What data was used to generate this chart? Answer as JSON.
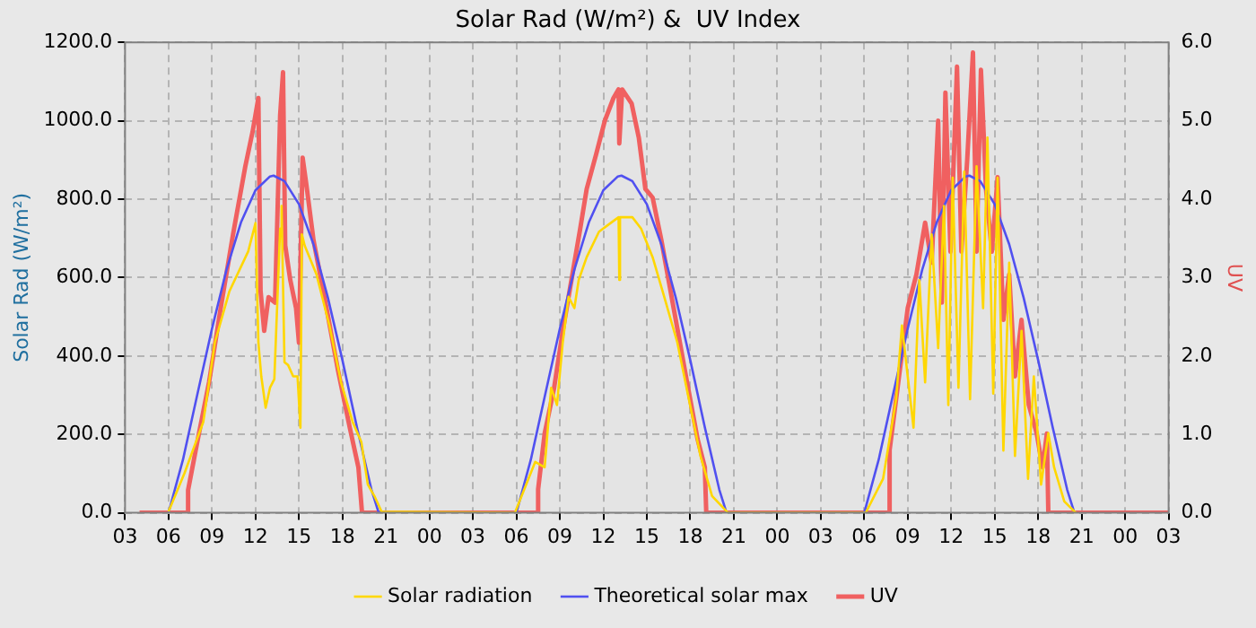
{
  "chart_data": {
    "type": "line",
    "title": "Solar Rad (W/m²) &  UV Index",
    "ylabel": "Solar Rad (W/m²)",
    "y2label": "UV",
    "xlim": [
      3,
      75
    ],
    "xticks": [
      {
        "value": 3,
        "label": "03"
      },
      {
        "value": 6,
        "label": "06"
      },
      {
        "value": 9,
        "label": "09"
      },
      {
        "value": 12,
        "label": "12"
      },
      {
        "value": 15,
        "label": "15"
      },
      {
        "value": 18,
        "label": "18"
      },
      {
        "value": 21,
        "label": "21"
      },
      {
        "value": 24,
        "label": "00"
      },
      {
        "value": 27,
        "label": "03"
      },
      {
        "value": 30,
        "label": "06"
      },
      {
        "value": 33,
        "label": "09"
      },
      {
        "value": 36,
        "label": "12"
      },
      {
        "value": 39,
        "label": "15"
      },
      {
        "value": 42,
        "label": "18"
      },
      {
        "value": 45,
        "label": "21"
      },
      {
        "value": 48,
        "label": "00"
      },
      {
        "value": 51,
        "label": "03"
      },
      {
        "value": 54,
        "label": "06"
      },
      {
        "value": 57,
        "label": "09"
      },
      {
        "value": 60,
        "label": "12"
      },
      {
        "value": 63,
        "label": "15"
      },
      {
        "value": 66,
        "label": "18"
      },
      {
        "value": 69,
        "label": "21"
      },
      {
        "value": 72,
        "label": "00"
      },
      {
        "value": 75,
        "label": "03"
      }
    ],
    "ylim": [
      0,
      1200
    ],
    "yticks": [
      {
        "value": 0,
        "label": "0.0"
      },
      {
        "value": 200,
        "label": "200.0"
      },
      {
        "value": 400,
        "label": "400.0"
      },
      {
        "value": 600,
        "label": "600.0"
      },
      {
        "value": 800,
        "label": "800.0"
      },
      {
        "value": 1000,
        "label": "1000.0"
      },
      {
        "value": 1200,
        "label": "1200.0"
      }
    ],
    "y2lim": [
      0,
      6
    ],
    "y2ticks": [
      {
        "value": 0,
        "label": "0.0"
      },
      {
        "value": 1,
        "label": "1.0"
      },
      {
        "value": 2,
        "label": "2.0"
      },
      {
        "value": 3,
        "label": "3.0"
      },
      {
        "value": 4,
        "label": "4.0"
      },
      {
        "value": 5,
        "label": "5.0"
      },
      {
        "value": 6,
        "label": "6.0"
      }
    ],
    "grid": true,
    "legend": "bottom",
    "marker": "none",
    "line_style": "solid",
    "series": [
      {
        "name": "Solar radiation",
        "color": "#ffd700",
        "x": [
          6.0,
          7.1,
          8.4,
          9.2,
          10.2,
          11.5,
          12.0,
          12.2,
          12.4,
          12.7,
          13.0,
          13.3,
          13.7,
          13.8,
          14.0,
          14.25,
          14.6,
          14.9,
          15.1,
          15.2,
          15.4,
          16.2,
          17.1,
          17.9,
          18.7,
          19.3,
          19.75,
          20.2,
          20.7,
          29.9,
          31.3,
          31.95,
          32.4,
          32.8,
          33.2,
          33.6,
          34.0,
          34.3,
          34.85,
          35.7,
          36.5,
          37.05,
          37.1,
          37.15,
          38.0,
          38.6,
          39.4,
          40.2,
          41.1,
          41.9,
          42.7,
          43.5,
          44.6,
          54.1,
          55.3,
          56.2,
          56.6,
          57.0,
          57.4,
          57.8,
          58.2,
          58.65,
          59.1,
          59.5,
          59.8,
          60.1,
          60.5,
          60.9,
          61.3,
          61.75,
          62.2,
          62.5,
          62.9,
          63.2,
          63.6,
          64.0,
          64.4,
          64.85,
          65.3,
          65.7,
          66.2,
          66.7,
          67.1,
          67.8,
          68.6
        ],
        "values": [
          3,
          101,
          232,
          435,
          565,
          667,
          739,
          435,
          348,
          268,
          319,
          341,
          725,
          783,
          384,
          377,
          348,
          348,
          217,
          710,
          681,
          609,
          478,
          333,
          232,
          181,
          72,
          43,
          3,
          0,
          130,
          116,
          319,
          275,
          435,
          551,
          522,
          594,
          652,
          717,
          739,
          754,
          594,
          754,
          754,
          725,
          652,
          551,
          435,
          290,
          145,
          43,
          0,
          0,
          87,
          290,
          478,
          348,
          217,
          594,
          333,
          710,
          420,
          783,
          275,
          855,
          319,
          870,
          290,
          884,
          522,
          957,
          304,
          855,
          159,
          638,
          145,
          464,
          87,
          348,
          72,
          203,
          116,
          29,
          0
        ]
      },
      {
        "name": "Theoretical solar max",
        "color": "#5050f0",
        "x": [
          6,
          7,
          8,
          9,
          10,
          11,
          12,
          13,
          13.25,
          14,
          15,
          16,
          17,
          18,
          19,
          20,
          20.5,
          30,
          31,
          32,
          33,
          34,
          35,
          36,
          37,
          37.25,
          38,
          39,
          40,
          41,
          42,
          43,
          44,
          44.5,
          54,
          55,
          56,
          57,
          58,
          59,
          60,
          61,
          61.25,
          62,
          63,
          64,
          65,
          66,
          67,
          68,
          68.5
        ],
        "values": [
          0,
          136,
          304,
          470,
          620,
          741,
          823,
          858,
          860,
          846,
          787,
          685,
          548,
          389,
          218,
          59,
          0,
          0,
          136,
          304,
          470,
          620,
          741,
          823,
          858,
          860,
          846,
          787,
          685,
          548,
          389,
          218,
          59,
          0,
          0,
          136,
          304,
          470,
          620,
          741,
          823,
          858,
          860,
          846,
          787,
          685,
          548,
          389,
          218,
          59,
          0
        ]
      },
      {
        "name": "UV",
        "color": "#f06060",
        "axis": "y2",
        "x": [
          4,
          7.3,
          7.35,
          7.95,
          8.8,
          9.6,
          10.45,
          11.3,
          11.8,
          12.2,
          12.35,
          12.6,
          12.9,
          13.35,
          13.7,
          13.9,
          14.05,
          14.4,
          14.8,
          15.0,
          15.25,
          15.5,
          16.0,
          16.9,
          17.7,
          18.5,
          19.1,
          19.35,
          31.45,
          31.5,
          31.95,
          32.6,
          33.2,
          33.8,
          34.4,
          34.85,
          35.5,
          36.1,
          36.7,
          37.05,
          37.1,
          37.3,
          37.95,
          38.45,
          38.9,
          39.4,
          40.0,
          40.85,
          41.7,
          42.5,
          43.0,
          43.1,
          55.7,
          55.75,
          56.4,
          57.0,
          57.6,
          58.2,
          58.65,
          59.1,
          59.35,
          59.6,
          59.95,
          60.4,
          60.7,
          61.1,
          61.5,
          61.75,
          62.05,
          62.4,
          62.8,
          63.2,
          63.6,
          64.0,
          64.4,
          64.85,
          65.35,
          65.9,
          66.3,
          66.6,
          66.7,
          75
        ],
        "values": [
          0,
          0,
          0.29,
          0.87,
          1.67,
          2.61,
          3.55,
          4.42,
          4.86,
          5.29,
          2.83,
          2.32,
          2.75,
          2.68,
          5.07,
          5.62,
          3.41,
          2.97,
          2.61,
          2.17,
          4.53,
          4.2,
          3.48,
          2.61,
          1.81,
          1.09,
          0.58,
          0,
          0,
          0.3,
          1.01,
          1.59,
          2.32,
          2.97,
          3.62,
          4.13,
          4.57,
          5.0,
          5.29,
          5.4,
          4.71,
          5.4,
          5.22,
          4.78,
          4.13,
          4.02,
          3.48,
          2.61,
          1.74,
          0.94,
          0.58,
          0,
          0,
          0.8,
          1.74,
          2.61,
          3.04,
          3.7,
          3.19,
          5.0,
          2.68,
          5.36,
          3.33,
          5.69,
          3.33,
          4.49,
          5.87,
          3.33,
          5.65,
          4.13,
          3.33,
          4.28,
          2.46,
          3.04,
          1.74,
          2.46,
          1.38,
          1.01,
          0.58,
          1.01,
          0,
          0
        ]
      }
    ]
  }
}
